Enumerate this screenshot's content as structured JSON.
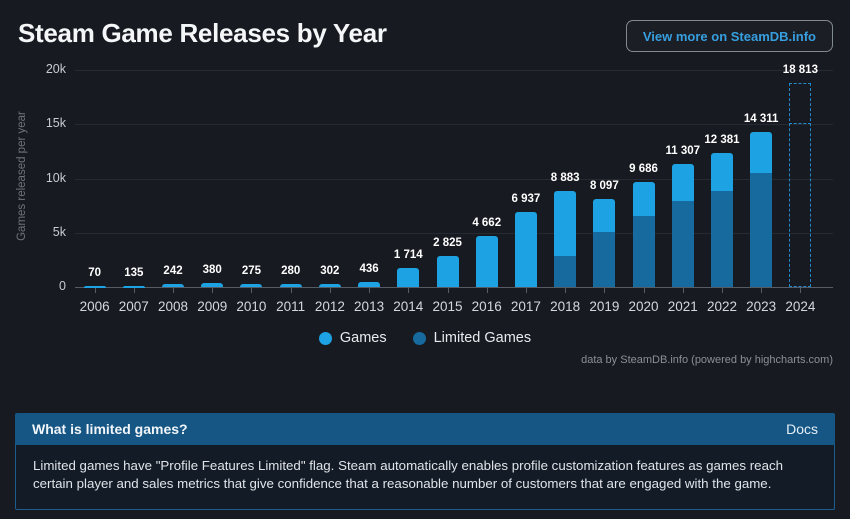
{
  "header": {
    "title": "Steam Game Releases by Year",
    "button_label": "View more on SteamDB.info"
  },
  "colors": {
    "games": "#1da2e4",
    "limited": "#166a9e",
    "projection_dash": "#2187ca",
    "background": "#171a20"
  },
  "chart_data": {
    "type": "bar",
    "stacked": true,
    "title": "Steam Game Releases by Year",
    "ylabel": "Games released per year",
    "ylim": [
      0,
      20000
    ],
    "grid": true,
    "yticks": [
      {
        "v": 0,
        "label": "0"
      },
      {
        "v": 5000,
        "label": "5k"
      },
      {
        "v": 10000,
        "label": "10k"
      },
      {
        "v": 15000,
        "label": "15k"
      },
      {
        "v": 20000,
        "label": "20k"
      }
    ],
    "categories": [
      "2006",
      "2007",
      "2008",
      "2009",
      "2010",
      "2011",
      "2012",
      "2013",
      "2014",
      "2015",
      "2016",
      "2017",
      "2018",
      "2019",
      "2020",
      "2021",
      "2022",
      "2023",
      "2024"
    ],
    "series": [
      {
        "name": "Games",
        "color": "#1da2e4",
        "values": [
          70,
          135,
          242,
          380,
          275,
          280,
          302,
          436,
          1714,
          2825,
          4662,
          6937,
          6033,
          2997,
          3136,
          3357,
          3531,
          3811,
          3713
        ]
      },
      {
        "name": "Limited Games",
        "color": "#166a9e",
        "values": [
          0,
          0,
          0,
          0,
          0,
          0,
          0,
          0,
          0,
          0,
          0,
          0,
          2850,
          5100,
          6550,
          7950,
          8850,
          10500,
          15100
        ]
      }
    ],
    "totals": [
      70,
      135,
      242,
      380,
      275,
      280,
      302,
      436,
      1714,
      2825,
      4662,
      6937,
      8883,
      8097,
      9686,
      11307,
      12381,
      14311,
      18813
    ],
    "total_labels": [
      "70",
      "135",
      "242",
      "380",
      "275",
      "280",
      "302",
      "436",
      "1 714",
      "2 825",
      "4 662",
      "6 937",
      "8 883",
      "8 097",
      "9 686",
      "11 307",
      "12 381",
      "14 311",
      "18 813"
    ],
    "projection": {
      "category": "2024",
      "total": 18813,
      "split": 15100
    },
    "legend_position": "bottom-center"
  },
  "attribution": "data by SteamDB.info (powered by highcharts.com)",
  "info_panel": {
    "title": "What is limited games?",
    "link_label": "Docs",
    "body": "Limited games have \"Profile Features Limited\" flag. Steam automatically enables profile customization features as games reach certain player and sales metrics that give confidence that a reasonable number of customers that are engaged with the game."
  }
}
